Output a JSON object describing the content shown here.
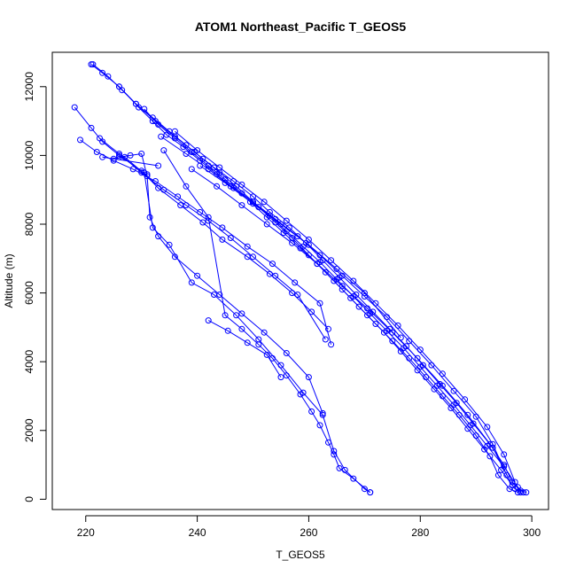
{
  "chart_data": {
    "type": "scatter",
    "title": "ATOM1 Northeast_Pacific T_GEOS5",
    "xlabel": "T_GEOS5",
    "ylabel": "Altitude (m)",
    "xlim": [
      214,
      303
    ],
    "ylim": [
      -300,
      13000
    ],
    "xticks": [
      220,
      240,
      260,
      280,
      300
    ],
    "yticks": [
      0,
      2000,
      4000,
      6000,
      8000,
      10000,
      12000
    ],
    "grid": false,
    "legend": "none",
    "series_color": "#0000ff",
    "marker": "open-circle",
    "series": [
      {
        "x": [
          221.3,
          224.0,
          226.5,
          229.0,
          232.0,
          235.0,
          238.0,
          241.0,
          244.0,
          247.0,
          250.0,
          253.0,
          256.0,
          259.0,
          262.0,
          265.0,
          268.0,
          271.0,
          274.0,
          277.0,
          280.0,
          283.0,
          286.0,
          289.0,
          292.0,
          295.0,
          297.5,
          298.5
        ],
        "y": [
          12650,
          12300,
          11900,
          11500,
          11100,
          10700,
          10300,
          9900,
          9500,
          9100,
          8650,
          8250,
          7800,
          7350,
          6900,
          6400,
          5900,
          5400,
          4900,
          4400,
          3850,
          3300,
          2750,
          2150,
          1550,
          950,
          350,
          200
        ]
      },
      {
        "x": [
          221.0,
          223.0,
          226.0,
          229.5,
          232.0,
          234.5,
          237.5,
          240.5,
          243.5,
          246.5,
          249.5,
          252.5,
          255.5,
          258.5,
          261.5,
          264.5,
          267.5,
          270.5,
          273.5,
          276.5,
          279.5,
          282.5,
          285.5,
          288.5,
          291.5,
          294.5,
          297.0,
          298.0
        ],
        "y": [
          12650,
          12400,
          12000,
          11400,
          11000,
          10600,
          10250,
          9850,
          9450,
          9050,
          8650,
          8200,
          7750,
          7300,
          6850,
          6350,
          5850,
          5350,
          4850,
          4300,
          3750,
          3200,
          2650,
          2050,
          1450,
          850,
          300,
          200
        ]
      },
      {
        "x": [
          226.0,
          229.0,
          232.5,
          236.0,
          239.5,
          243.0,
          246.5,
          250.0,
          253.0,
          256.5,
          259.5,
          262.5,
          265.5,
          268.5,
          271.5,
          274.5,
          277.5,
          280.5,
          283.5,
          286.5,
          289.5,
          292.5,
          295.0,
          296.5,
          298.0,
          299.0
        ],
        "y": [
          12000,
          11500,
          11000,
          10550,
          10100,
          9650,
          9250,
          8800,
          8350,
          7900,
          7450,
          6950,
          6450,
          5950,
          5450,
          4950,
          4450,
          3900,
          3350,
          2800,
          2200,
          1600,
          1000,
          500,
          250,
          200
        ]
      },
      {
        "x": [
          230.5,
          233.0,
          236.0,
          239.0,
          242.0,
          245.0,
          248.0,
          251.0,
          254.0,
          257.0,
          260.0,
          263.0,
          266.0,
          269.0,
          272.0,
          275.0,
          278.0,
          281.0,
          284.0,
          287.0,
          290.0,
          292.5,
          294.0,
          296.0,
          297.5
        ],
        "y": [
          11350,
          10900,
          10500,
          10100,
          9700,
          9300,
          8900,
          8500,
          8050,
          7600,
          7100,
          6600,
          6100,
          5600,
          5100,
          4600,
          4100,
          3550,
          3000,
          2450,
          1850,
          1250,
          700,
          300,
          200
        ]
      },
      {
        "x": [
          236.0,
          240.0,
          244.0,
          248.0,
          252.0,
          256.0,
          260.0,
          264.0,
          268.0,
          272.0,
          276.0,
          280.0,
          284.0,
          288.0,
          292.0,
          295.0,
          297.0
        ],
        "y": [
          10700,
          10150,
          9650,
          9150,
          8650,
          8100,
          7550,
          6950,
          6350,
          5700,
          5050,
          4350,
          3650,
          2900,
          2100,
          1300,
          500
        ]
      },
      {
        "x": [
          233.5,
          238.0,
          242.0,
          246.0,
          250.0,
          254.0,
          258.0,
          262.0,
          266.0,
          270.0,
          274.0,
          278.0,
          282.0,
          286.0,
          290.0,
          293.0,
          295.5
        ],
        "y": [
          10550,
          10050,
          9600,
          9100,
          8650,
          8150,
          7650,
          7100,
          6500,
          5900,
          5300,
          4600,
          3900,
          3150,
          2400,
          1600,
          700
        ]
      },
      {
        "x": [
          239.0,
          243.5,
          248.0,
          252.5,
          257.0,
          261.5,
          266.0,
          270.5,
          275.0,
          279.5,
          284.0,
          288.5,
          293.0,
          296.5
        ],
        "y": [
          9600,
          9100,
          8550,
          8000,
          7450,
          6850,
          6200,
          5550,
          4850,
          4100,
          3300,
          2450,
          1500,
          400
        ]
      },
      {
        "x": [
          240.5,
          245.0,
          250.0,
          255.0,
          260.0,
          265.0,
          270.0,
          276.5
        ],
        "y": [
          9700,
          9200,
          8600,
          8000,
          7400,
          6700,
          6000,
          4700
        ]
      },
      {
        "x": [
          218.0,
          221.0,
          223.0,
          226.0,
          230.0,
          233.0,
          237.0,
          241.0,
          244.5,
          249.0,
          253.0,
          257.0,
          260.5,
          263.5
        ],
        "y": [
          11400,
          10800,
          10400,
          10000,
          9550,
          9050,
          8550,
          8050,
          7550,
          7050,
          6550,
          6000,
          5450,
          4950
        ]
      },
      {
        "x": [
          219.0,
          222.0,
          225.0,
          228.5,
          232.5,
          236.5,
          240.5,
          244.5,
          249.0,
          253.5,
          257.5,
          262.0,
          264.0
        ],
        "y": [
          10450,
          10100,
          9850,
          9600,
          9250,
          8800,
          8350,
          7900,
          7350,
          6850,
          6300,
          5700,
          4500
        ]
      },
      {
        "x": [
          222.5,
          226.0,
          230.0,
          234.0,
          238.0,
          242.0,
          246.0,
          250.0,
          254.0,
          258.0,
          263.0
        ],
        "y": [
          10500,
          10050,
          9500,
          9000,
          8550,
          8100,
          7600,
          7050,
          6500,
          5950,
          4650
        ]
      },
      {
        "x": [
          231.0,
          231.5,
          233.0,
          236.0,
          240.0,
          244.0,
          248.0,
          252.0,
          256.0,
          260.0,
          262.5
        ],
        "y": [
          9450,
          8200,
          7650,
          7050,
          6500,
          5950,
          5400,
          4850,
          4250,
          3550,
          2500
        ]
      },
      {
        "x": [
          230.5,
          232.0,
          235.0,
          239.0,
          243.0,
          247.0,
          251.0,
          255.0,
          259.0,
          262.5,
          264.5,
          266.5,
          270.0,
          271.0
        ],
        "y": [
          9500,
          7900,
          7400,
          6300,
          5950,
          5350,
          4650,
          3900,
          3100,
          2450,
          1400,
          850,
          300,
          200
        ]
      },
      {
        "x": [
          234.0,
          238.0,
          242.0,
          245.0,
          248.0,
          251.0,
          253.5,
          256.0,
          258.5,
          260.5,
          262.0,
          263.5,
          264.5,
          265.5,
          268.0,
          271.0
        ],
        "y": [
          10150,
          9100,
          8200,
          5350,
          4950,
          4500,
          4100,
          3600,
          3050,
          2550,
          2150,
          1650,
          1300,
          900,
          600,
          200
        ]
      },
      {
        "x": [
          242.0,
          245.5,
          249.0,
          252.5,
          255.0
        ],
        "y": [
          5200,
          4900,
          4550,
          4200,
          3550
        ]
      },
      {
        "x": [
          226.0,
          228.0,
          230.0,
          231.0,
          227.0,
          225.0,
          223.0,
          233.0
        ],
        "y": [
          9950,
          10000,
          10050,
          9400,
          9950,
          9900,
          9950,
          9700
        ]
      }
    ]
  }
}
